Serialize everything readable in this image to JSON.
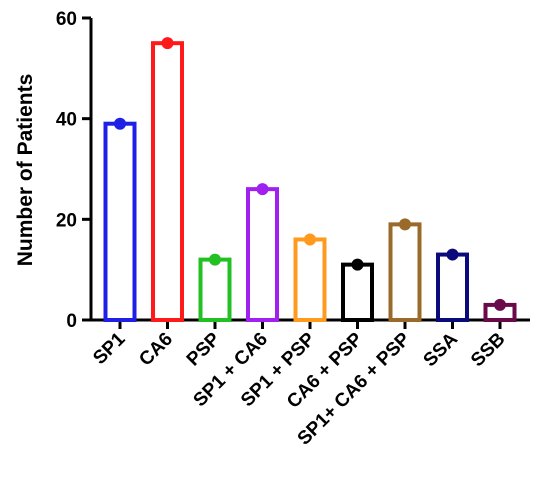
{
  "chart_data": {
    "type": "bar",
    "title": "",
    "xlabel": "",
    "ylabel": "Number of Patients",
    "ylim": [
      0,
      60
    ],
    "yticks": [
      0,
      20,
      40,
      60
    ],
    "yticks_labels": [
      "0",
      "20",
      "40",
      "60"
    ],
    "grid": false,
    "bar_style": "outlined, with dot marker at top",
    "categories": [
      "SP1",
      "CA6",
      "PSP",
      "SP1 + CA6",
      "SP1 + PSP",
      "CA6 + PSP",
      "SP1+ CA6 + PSP",
      "SSA",
      "SSB"
    ],
    "values": [
      39,
      55,
      12,
      26,
      16,
      11,
      19,
      13,
      3
    ],
    "colors": [
      "#1f1fe6",
      "#ff1a1a",
      "#22c022",
      "#a020f0",
      "#ff9a1f",
      "#000000",
      "#9a6a2a",
      "#0a0a7a",
      "#6a0a4a"
    ]
  }
}
